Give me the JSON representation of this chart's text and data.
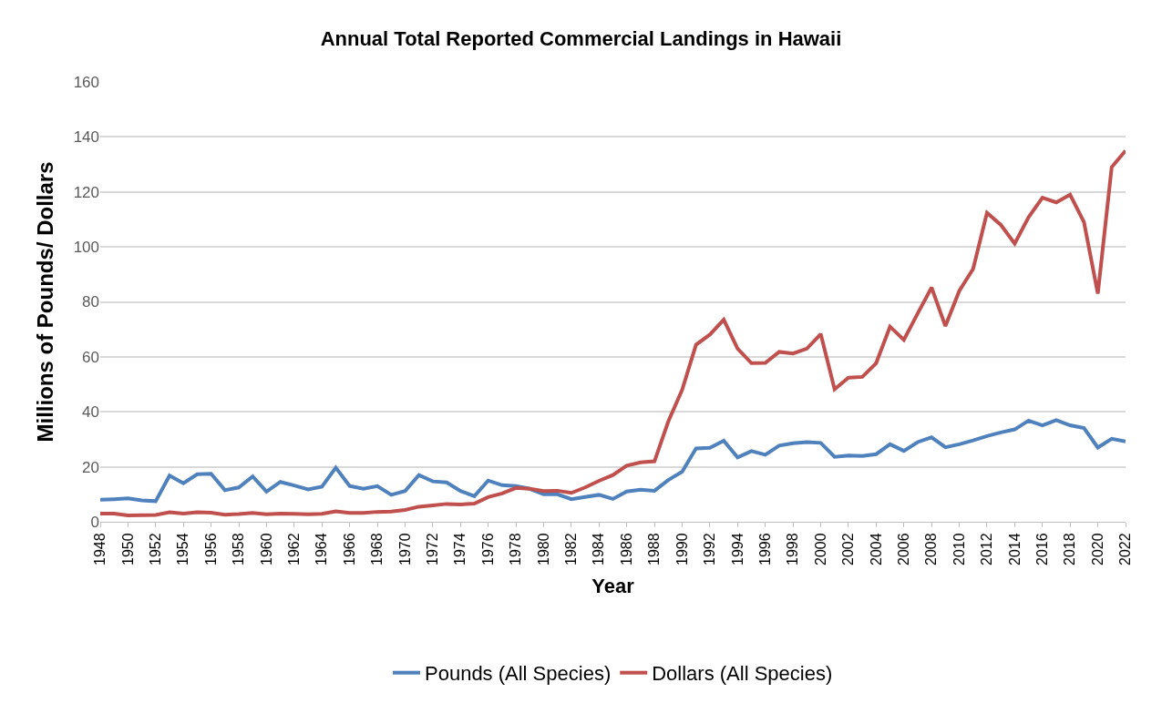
{
  "chart_data": {
    "type": "line",
    "title": "Annual Total Reported Commercial Landings in Hawaii",
    "xlabel": "Year",
    "ylabel": "Millions of Pounds/ Dollars",
    "x": [
      1948,
      1949,
      1950,
      1951,
      1952,
      1953,
      1954,
      1955,
      1956,
      1957,
      1958,
      1959,
      1960,
      1961,
      1962,
      1963,
      1964,
      1965,
      1966,
      1967,
      1968,
      1969,
      1970,
      1971,
      1972,
      1973,
      1974,
      1975,
      1976,
      1977,
      1978,
      1979,
      1980,
      1981,
      1982,
      1983,
      1984,
      1985,
      1986,
      1987,
      1988,
      1989,
      1990,
      1991,
      1992,
      1993,
      1994,
      1995,
      1996,
      1997,
      1998,
      1999,
      2000,
      2001,
      2002,
      2003,
      2004,
      2005,
      2006,
      2007,
      2008,
      2009,
      2010,
      2011,
      2012,
      2013,
      2014,
      2015,
      2016,
      2017,
      2018,
      2019,
      2020,
      2021,
      2022
    ],
    "series": [
      {
        "name": "Pounds (All Species)",
        "color": "#4f81bd",
        "values": [
          8,
          8.2,
          8.5,
          7.8,
          7.5,
          16.8,
          14,
          17.3,
          17.5,
          11.5,
          12.5,
          16.5,
          11,
          14.5,
          13.2,
          11.8,
          12.8,
          19.7,
          13,
          12,
          13,
          9.8,
          11.2,
          17,
          14.7,
          14.3,
          11.2,
          9.3,
          15,
          13.3,
          13,
          12,
          10,
          10,
          8.2,
          9,
          9.8,
          8.3,
          11,
          11.7,
          11.3,
          15.2,
          18.2,
          26.7,
          26.9,
          29.5,
          23.4,
          25.7,
          24.4,
          27.7,
          28.6,
          29,
          28.7,
          23.6,
          24.1,
          23.9,
          24.6,
          28.2,
          25.8,
          29,
          30.7,
          27.1,
          28.2,
          29.6,
          31.2,
          32.5,
          33.6,
          36.8,
          35.1,
          37,
          35.1,
          34.1,
          27,
          30.2,
          29.2
        ]
      },
      {
        "name": "Dollars (All Species)",
        "color": "#c0504d",
        "values": [
          3,
          3,
          2.3,
          2.4,
          2.5,
          3.5,
          3,
          3.5,
          3.3,
          2.6,
          2.8,
          3.2,
          2.7,
          3,
          2.9,
          2.7,
          2.9,
          3.8,
          3.2,
          3.2,
          3.6,
          3.7,
          4.3,
          5.5,
          6,
          6.5,
          6.3,
          6.6,
          9,
          10.3,
          12.3,
          12,
          11.2,
          11.3,
          10.5,
          12.5,
          14.9,
          17,
          20.4,
          21.6,
          22,
          36.5,
          48,
          64.4,
          68.1,
          73.5,
          63,
          57.7,
          57.8,
          61.8,
          61.2,
          63,
          68.3,
          48.2,
          52.4,
          52.7,
          57.7,
          71,
          66.2,
          75.8,
          85.2,
          71.2,
          84,
          92,
          112.4,
          108,
          101.2,
          110.8,
          117.9,
          116.2,
          119,
          109,
          83,
          129,
          135
        ]
      }
    ],
    "xlim": [
      1948,
      2022
    ],
    "xticks": [
      1948,
      1950,
      1952,
      1954,
      1956,
      1958,
      1960,
      1962,
      1964,
      1966,
      1968,
      1970,
      1972,
      1974,
      1976,
      1978,
      1980,
      1982,
      1984,
      1986,
      1988,
      1990,
      1992,
      1994,
      1996,
      1998,
      2000,
      2002,
      2004,
      2006,
      2008,
      2010,
      2012,
      2014,
      2016,
      2018,
      2020,
      2022
    ],
    "ylim": [
      0,
      160
    ],
    "yticks": [
      0,
      20,
      40,
      60,
      80,
      100,
      120,
      140,
      160
    ],
    "grid": "y",
    "legend": "bottom",
    "marker": "none",
    "line_style": "solid"
  }
}
